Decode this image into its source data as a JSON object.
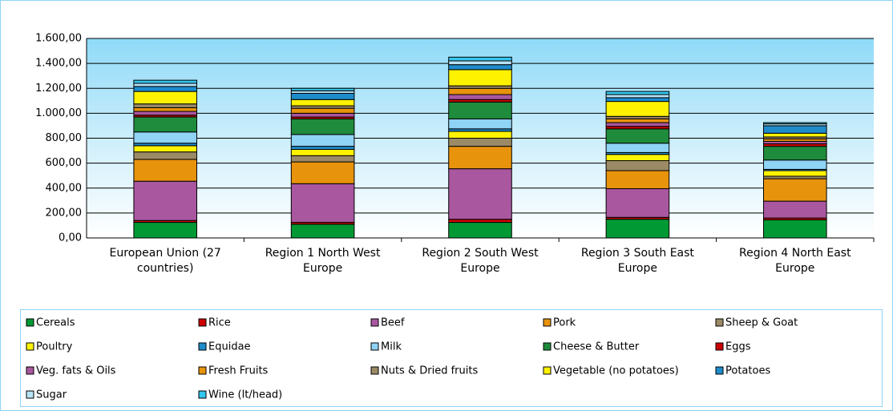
{
  "chart_data": {
    "type": "stacked_bar",
    "categories": [
      "European Union (27 countries)",
      "Region 1 North West Europe",
      "Region 2 South West Europe",
      "Region 3 South East Europe",
      "Region 4 North East Europe"
    ],
    "series": [
      {
        "name": "Cereals",
        "color": "#009933",
        "values": [
          125,
          110,
          125,
          150,
          145
        ]
      },
      {
        "name": "Rice",
        "color": "#cc0000",
        "values": [
          15,
          15,
          25,
          15,
          15
        ]
      },
      {
        "name": "Beef",
        "color": "#a9579f",
        "values": [
          315,
          310,
          405,
          230,
          135
        ]
      },
      {
        "name": "Pork",
        "color": "#e8930c",
        "values": [
          175,
          175,
          180,
          145,
          180
        ]
      },
      {
        "name": "Sheep & Goat",
        "color": "#9b8a66",
        "values": [
          60,
          50,
          65,
          80,
          20
        ]
      },
      {
        "name": "Poultry",
        "color": "#fff200",
        "values": [
          50,
          50,
          55,
          50,
          45
        ]
      },
      {
        "name": "Equidae",
        "color": "#1e8bcb",
        "values": [
          20,
          25,
          20,
          15,
          10
        ]
      },
      {
        "name": "Milk",
        "color": "#8fd3f5",
        "values": [
          90,
          95,
          80,
          75,
          75
        ]
      },
      {
        "name": "Cheese & Butter",
        "color": "#1e8c3c",
        "values": [
          120,
          125,
          135,
          115,
          110
        ]
      },
      {
        "name": "Eggs",
        "color": "#cc0000",
        "values": [
          15,
          15,
          20,
          20,
          20
        ]
      },
      {
        "name": "Veg. fats & Oils",
        "color": "#a9579f",
        "values": [
          30,
          30,
          40,
          30,
          20
        ]
      },
      {
        "name": "Fresh Fruits",
        "color": "#e8930c",
        "values": [
          30,
          40,
          50,
          30,
          20
        ]
      },
      {
        "name": "Nuts & Dried fruits",
        "color": "#9b8a66",
        "values": [
          30,
          20,
          20,
          20,
          15
        ]
      },
      {
        "name": "Vegetable (no potatoes)",
        "color": "#fff200",
        "values": [
          100,
          50,
          130,
          120,
          30
        ]
      },
      {
        "name": "Potatoes",
        "color": "#1e8bcb",
        "values": [
          40,
          50,
          40,
          30,
          60
        ]
      },
      {
        "name": "Sugar",
        "color": "#b7e3f5",
        "values": [
          25,
          20,
          30,
          25,
          15
        ]
      },
      {
        "name": "Wine (lt/head)",
        "color": "#33c6ee",
        "values": [
          25,
          20,
          30,
          25,
          10
        ]
      }
    ],
    "ylim": [
      0,
      1600
    ],
    "yticks": [
      {
        "value": 0,
        "label": "0,00"
      },
      {
        "value": 200,
        "label": "200,00"
      },
      {
        "value": 400,
        "label": "400,00"
      },
      {
        "value": 600,
        "label": "600,00"
      },
      {
        "value": 800,
        "label": "800,00"
      },
      {
        "value": 1000,
        "label": "1.000,00"
      },
      {
        "value": 1200,
        "label": "1.200,00"
      },
      {
        "value": 1400,
        "label": "1.400,00"
      },
      {
        "value": 1600,
        "label": "1.600,00"
      }
    ],
    "grid": true,
    "legend": "bottom"
  }
}
